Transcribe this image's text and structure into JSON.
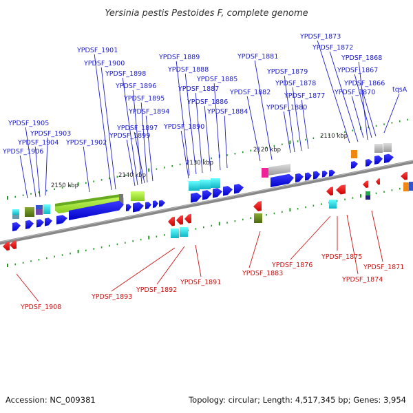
{
  "title": "Yersinia pestis Pestoides F, complete genome",
  "footer": {
    "accession": "Accession: NC_009381",
    "summary": "Topology: circular; Length: 4,517,345 bp; Genes: 3,954"
  },
  "colors": {
    "forward_label": "#1a1acc",
    "reverse_label": "#cc1111",
    "forward_gene": "#1111dd",
    "reverse_gene": "#ee1111",
    "backbone": "#888888",
    "tick": "#229922"
  },
  "scale_labels": [
    "2150 kbp",
    "2140 kbp",
    "2130 kbp",
    "2120 kbp",
    "2110 kbp"
  ],
  "forward_genes": [
    "YPDSF_1873",
    "YPDSF_1872",
    "YPDSF_1868",
    "YPDSF_1867",
    "YPDSF_1866",
    "tqsA",
    "YPDSF_1870",
    "YPDSF_1881",
    "YPDSF_1879",
    "YPDSF_1878",
    "YPDSF_1877",
    "YPDSF_1882",
    "YPDSF_1880",
    "YPDSF_1889",
    "YPDSF_1888",
    "YPDSF_1885",
    "YPDSF_1887",
    "YPDSF_1886",
    "YPDSF_1884",
    "YPDSF_1890",
    "YPDSF_1901",
    "YPDSF_1900",
    "YPDSF_1898",
    "YPDSF_1896",
    "YPDSF_1895",
    "YPDSF_1894",
    "YPDSF_1897",
    "YPDSF_1899",
    "YPDSF_1905",
    "YPDSF_1903",
    "YPDSF_1904",
    "YPDSF_1902",
    "YPDSF_1906"
  ],
  "reverse_genes": [
    "YPDSF_1908",
    "YPDSF_1893",
    "YPDSF_1892",
    "YPDSF_1891",
    "YPDSF_1883",
    "YPDSF_1876",
    "YPDSF_1875",
    "YPDSF_1874",
    "YPDSF_1871"
  ]
}
